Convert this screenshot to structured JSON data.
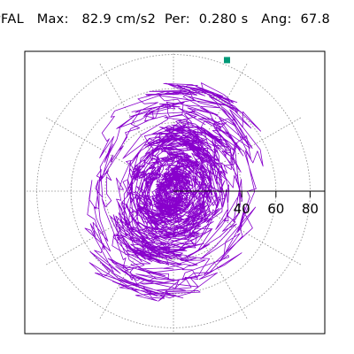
{
  "header": {
    "station": "PFAL",
    "max_label": "Max:",
    "max_value": "82.9 cm/s2",
    "per_label": "Per:",
    "per_value": "0.280 s",
    "ang_label": "Ang:",
    "ang_value": "67.8"
  },
  "colors": {
    "trace": "#8800cc",
    "marker": "#009977",
    "grid": "#888888",
    "axis": "#000000",
    "frame": "#000000"
  },
  "chart_data": {
    "type": "scatter",
    "description_type": "polar particle-motion orbit",
    "radial_ticks": [
      "40",
      "60",
      "80"
    ],
    "radial_tick_values": [
      40,
      60,
      80
    ],
    "grid_rings": [
      20,
      40,
      60,
      80
    ],
    "grid_spokes_deg": [
      0,
      30,
      60,
      90,
      120,
      150,
      180,
      210,
      240,
      270,
      300,
      330
    ],
    "max_amplitude": 82.9,
    "max_angle_deg": 67.8,
    "marker": {
      "label": "max point",
      "r": 82.9,
      "angle_deg": 67.8
    }
  }
}
